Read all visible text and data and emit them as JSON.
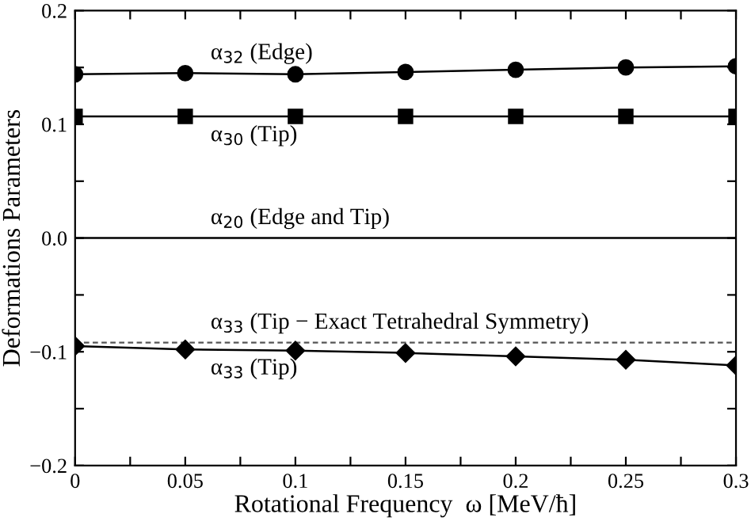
{
  "chart_data": {
    "type": "line",
    "xlabel": "Rotational Frequency  ω [MeV/ħ]",
    "ylabel": "Deformations Parameters",
    "x": [
      0,
      0.05,
      0.1,
      0.15,
      0.2,
      0.25,
      0.3
    ],
    "series": [
      {
        "name": "α$_{32}$ (Edge)",
        "color": "#000000",
        "marker": "circle",
        "line_style": "solid",
        "values": [
          0.144,
          0.145,
          0.144,
          0.146,
          0.148,
          0.15,
          0.151
        ]
      },
      {
        "name": "α$_{30}$ (Tip)",
        "color": "#000000",
        "marker": "square",
        "line_style": "solid",
        "values": [
          0.107,
          0.107,
          0.107,
          0.107,
          0.107,
          0.107,
          0.107
        ]
      },
      {
        "name": "α$_{20}$ (Edge and Tip)",
        "color": "#000000",
        "marker": "none",
        "line_style": "solid",
        "values": [
          0,
          0,
          0,
          0,
          0,
          0,
          0
        ]
      },
      {
        "name": "α$_{33}$ (Tip − Exact Tetrahedral Symmetry)",
        "color": "#555555",
        "marker": "none",
        "line_style": "dashed",
        "values": [
          -0.092,
          -0.092,
          -0.092,
          -0.092,
          -0.092,
          -0.092,
          -0.092
        ]
      },
      {
        "name": "α$_{33}$ (Tip)",
        "color": "#000000",
        "marker": "diamond",
        "line_style": "solid",
        "values": [
          -0.095,
          -0.098,
          -0.099,
          -0.101,
          -0.104,
          -0.107,
          -0.112
        ]
      }
    ],
    "xlim": [
      0,
      0.3
    ],
    "ylim": [
      -0.2,
      0.2
    ],
    "xticks": [
      {
        "value": 0,
        "label": "0"
      },
      {
        "value": 0.025,
        "label": null
      },
      0.05,
      {
        "value": 0.075,
        "label": null
      },
      0.1,
      {
        "value": 0.125,
        "label": null
      },
      0.15,
      {
        "value": 0.175,
        "label": null
      },
      0.2,
      {
        "value": 0.225,
        "label": null
      },
      0.25,
      {
        "value": 0.275,
        "label": null
      },
      0.3
    ],
    "yticks": [
      {
        "value": -0.2,
        "label": "−0.2"
      },
      {
        "value": -0.15,
        "label": null
      },
      {
        "value": -0.1,
        "label": "−0.1"
      },
      {
        "value": -0.05,
        "label": null
      },
      {
        "value": 0,
        "label": "0.0"
      },
      {
        "value": 0.05,
        "label": null
      },
      0.1,
      {
        "value": 0.15,
        "label": null
      },
      0.2
    ],
    "grid": false
  }
}
